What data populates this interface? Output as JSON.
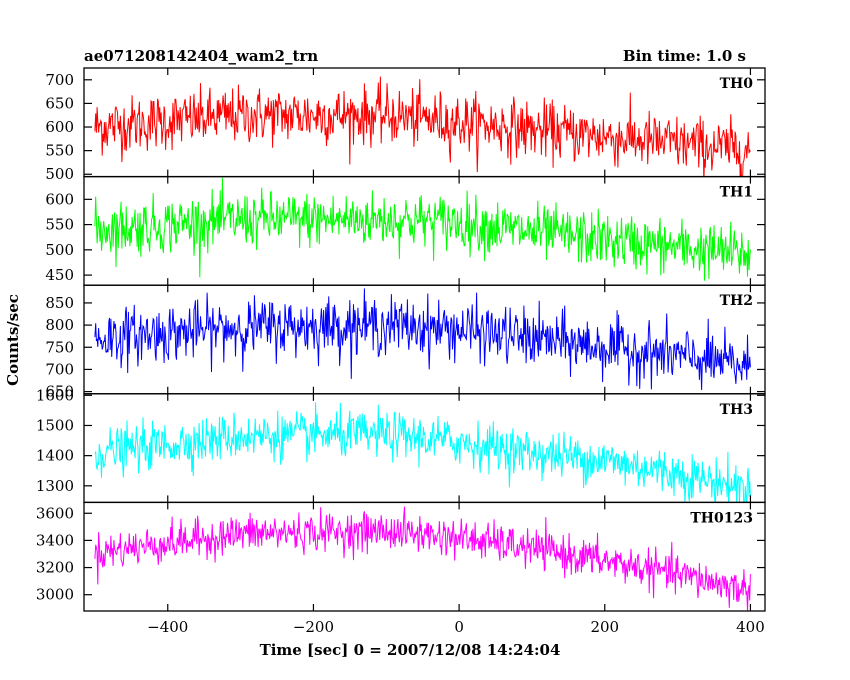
{
  "header": {
    "title": "ae071208142404_wam2_trn",
    "bin_time": "Bin time: 1.0 s"
  },
  "chart_data": {
    "type": "line",
    "title": "ae071208142404_wam2_trn",
    "subtitle": "Bin time: 1.0 s",
    "xlabel": "Time [sec] 0 = 2007/12/08 14:24:04",
    "ylabel": "Counts/sec",
    "xlim": [
      -515,
      420
    ],
    "x_range": [
      -500,
      400
    ],
    "x_step": 1,
    "x_ticks": [
      -400,
      -200,
      0,
      200,
      400
    ],
    "x_tick_labels": [
      "−400",
      "−200",
      "0",
      "200",
      "400"
    ],
    "series": [
      {
        "name": "TH0",
        "color": "#ff0000",
        "ylim": [
          495,
          725
        ],
        "y_ticks": [
          500,
          550,
          600,
          650,
          700
        ],
        "trend": [
          [
            -500,
            600
          ],
          [
            -300,
            625
          ],
          [
            -100,
            625
          ],
          [
            0,
            610
          ],
          [
            100,
            595
          ],
          [
            200,
            580
          ],
          [
            300,
            565
          ],
          [
            400,
            550
          ]
        ],
        "noise_sd": 30
      },
      {
        "name": "TH1",
        "color": "#00ff00",
        "ylim": [
          430,
          645
        ],
        "y_ticks": [
          450,
          500,
          550,
          600
        ],
        "trend": [
          [
            -500,
            540
          ],
          [
            -300,
            560
          ],
          [
            -100,
            560
          ],
          [
            0,
            555
          ],
          [
            100,
            535
          ],
          [
            200,
            520
          ],
          [
            300,
            505
          ],
          [
            400,
            490
          ]
        ],
        "noise_sd": 27
      },
      {
        "name": "TH2",
        "color": "#0000ff",
        "ylim": [
          645,
          890
        ],
        "y_ticks": [
          650,
          700,
          750,
          800,
          850
        ],
        "trend": [
          [
            -500,
            770
          ],
          [
            -300,
            795
          ],
          [
            -100,
            800
          ],
          [
            0,
            790
          ],
          [
            100,
            770
          ],
          [
            200,
            750
          ],
          [
            300,
            730
          ],
          [
            400,
            705
          ]
        ],
        "noise_sd": 32
      },
      {
        "name": "TH3",
        "color": "#00ffff",
        "ylim": [
          1245,
          1605
        ],
        "y_ticks": [
          1300,
          1400,
          1500,
          1600
        ],
        "trend": [
          [
            -500,
            1410
          ],
          [
            -300,
            1465
          ],
          [
            -100,
            1470
          ],
          [
            0,
            1445
          ],
          [
            100,
            1410
          ],
          [
            200,
            1385
          ],
          [
            300,
            1340
          ],
          [
            400,
            1290
          ]
        ],
        "noise_sd": 38
      },
      {
        "name": "TH0123",
        "color": "#ff00ff",
        "ylim": [
          2880,
          3680
        ],
        "y_ticks": [
          3000,
          3200,
          3400,
          3600
        ],
        "trend": [
          [
            -500,
            3310
          ],
          [
            -300,
            3450
          ],
          [
            -100,
            3470
          ],
          [
            0,
            3420
          ],
          [
            100,
            3340
          ],
          [
            200,
            3250
          ],
          [
            300,
            3150
          ],
          [
            400,
            3030
          ]
        ],
        "noise_sd": 70
      }
    ]
  }
}
